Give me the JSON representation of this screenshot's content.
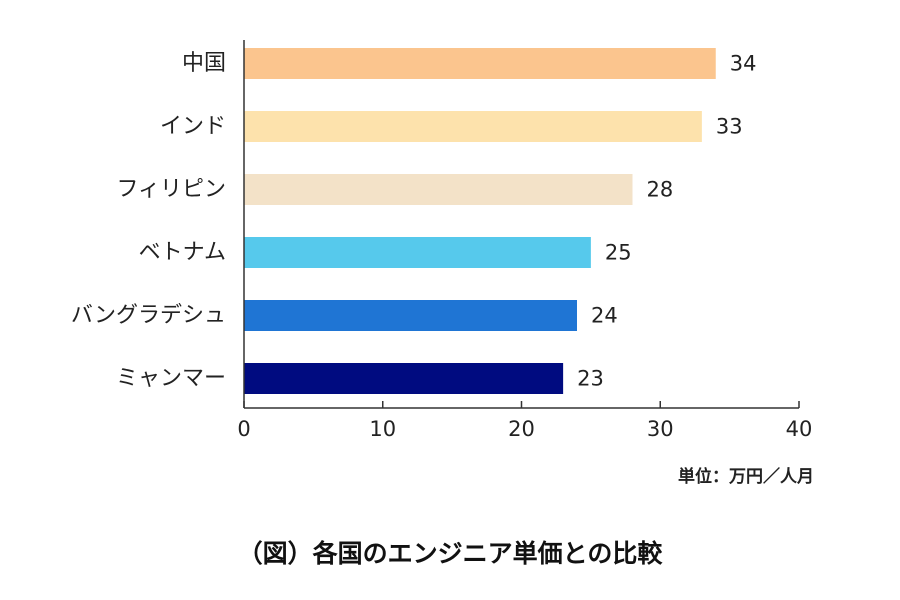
{
  "chart_data": {
    "type": "bar",
    "orientation": "horizontal",
    "categories": [
      "中国",
      "インド",
      "フィリピン",
      "ベトナム",
      "バングラデシュ",
      "ミャンマー"
    ],
    "values": [
      34,
      33,
      28,
      25,
      24,
      23
    ],
    "value_labels": [
      "34",
      "33",
      "28",
      "25",
      "24",
      "23"
    ],
    "bar_colors": [
      "#fbc58e",
      "#fde2ac",
      "#f3e2c8",
      "#56c9ec",
      "#1f75d4",
      "#000b80"
    ],
    "label_colors": [
      "#222222",
      "#222222",
      "#222222",
      "#56c9ec",
      "#222222",
      "#222222"
    ],
    "xlim": [
      0,
      40
    ],
    "x_ticks": [
      0,
      10,
      20,
      30,
      40
    ],
    "x_tick_labels": [
      "0",
      "10",
      "20",
      "30",
      "40"
    ],
    "grid": false,
    "unit": "単位：万円／人月",
    "caption": "（図）各国のエンジニア単価との比較"
  }
}
